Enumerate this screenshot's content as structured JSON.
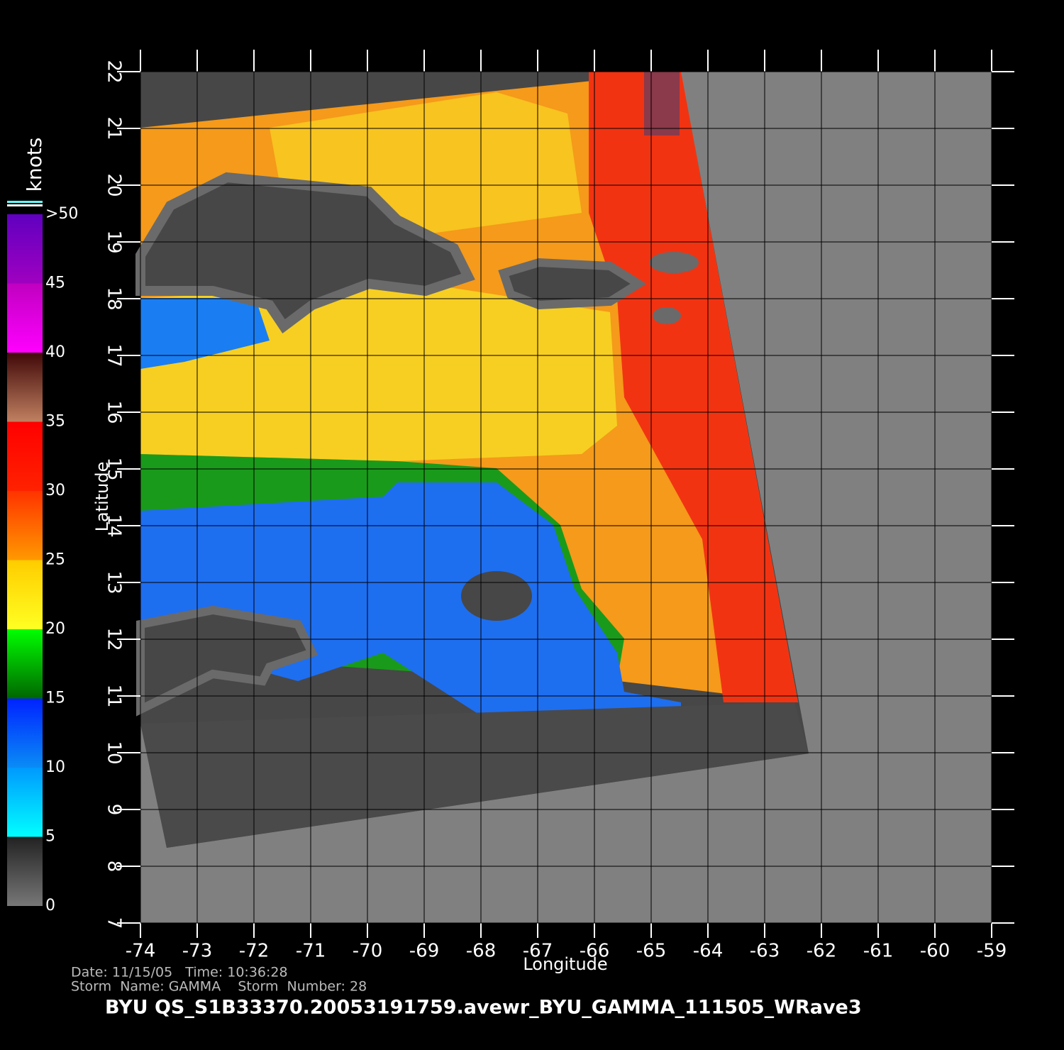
{
  "map": {
    "xlabel": "Longitude",
    "ylabel": "Latitude",
    "xlim": [
      -74,
      -59
    ],
    "ylim": [
      7,
      22
    ],
    "xticks": [
      -74,
      -73,
      -72,
      -71,
      -70,
      -69,
      -68,
      -67,
      -66,
      -65,
      -64,
      -63,
      -62,
      -61,
      -60,
      -59
    ],
    "yticks": [
      7,
      8,
      9,
      10,
      11,
      12,
      13,
      14,
      15,
      16,
      17,
      18,
      19,
      20,
      21,
      22
    ]
  },
  "colorbar": {
    "unit": "knots",
    "lim": [
      0,
      50
    ],
    "ticks": [
      0,
      5,
      10,
      15,
      20,
      25,
      30,
      35,
      40,
      45,
      {
        "value": 50,
        "label": ">50"
      }
    ]
  },
  "footer": {
    "date_line": "Date: 11/15/05   Time: 10:36:28",
    "storm_line": "Storm  Name: GAMMA    Storm  Number: 28",
    "file": "BYU  QS_S1B33370.20053191759.avewr_BYU_GAMMA_111505_WRave3"
  }
}
